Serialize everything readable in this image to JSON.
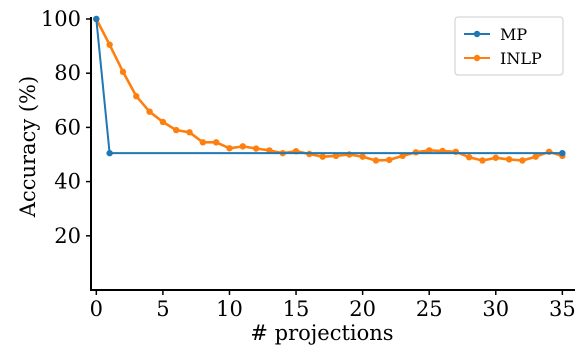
{
  "chart_data": {
    "type": "line",
    "title": "",
    "xlabel": "# projections",
    "ylabel": "Accuracy (%)",
    "xlim": [
      -0.4,
      35.8
    ],
    "ylim": [
      0,
      100
    ],
    "xticks": [
      0,
      5,
      10,
      15,
      20,
      25,
      30,
      35
    ],
    "yticks": [
      20,
      40,
      60,
      80,
      100
    ],
    "grid": false,
    "legend_position": "top-right",
    "series": [
      {
        "name": "MP",
        "color": "#1f77b4",
        "x": [
          0,
          1,
          35
        ],
        "y": [
          100,
          50.5,
          50.5
        ]
      },
      {
        "name": "INLP",
        "color": "#ff7f0e",
        "x": [
          0,
          1,
          2,
          3,
          4,
          5,
          6,
          7,
          8,
          9,
          10,
          11,
          12,
          13,
          14,
          15,
          16,
          17,
          18,
          19,
          20,
          21,
          22,
          23,
          24,
          25,
          26,
          27,
          28,
          29,
          30,
          31,
          32,
          33,
          34,
          35
        ],
        "y": [
          100,
          90.5,
          80.5,
          71.5,
          65.8,
          62,
          59,
          58.2,
          54.5,
          54.5,
          52.3,
          53,
          52.2,
          51.5,
          50.5,
          51.2,
          50.2,
          49.2,
          49.5,
          50,
          49.2,
          47.8,
          48,
          49.5,
          50.8,
          51.5,
          51.3,
          51,
          49,
          47.8,
          48.8,
          48.2,
          47.8,
          49.2,
          51,
          49.5
        ]
      }
    ]
  }
}
